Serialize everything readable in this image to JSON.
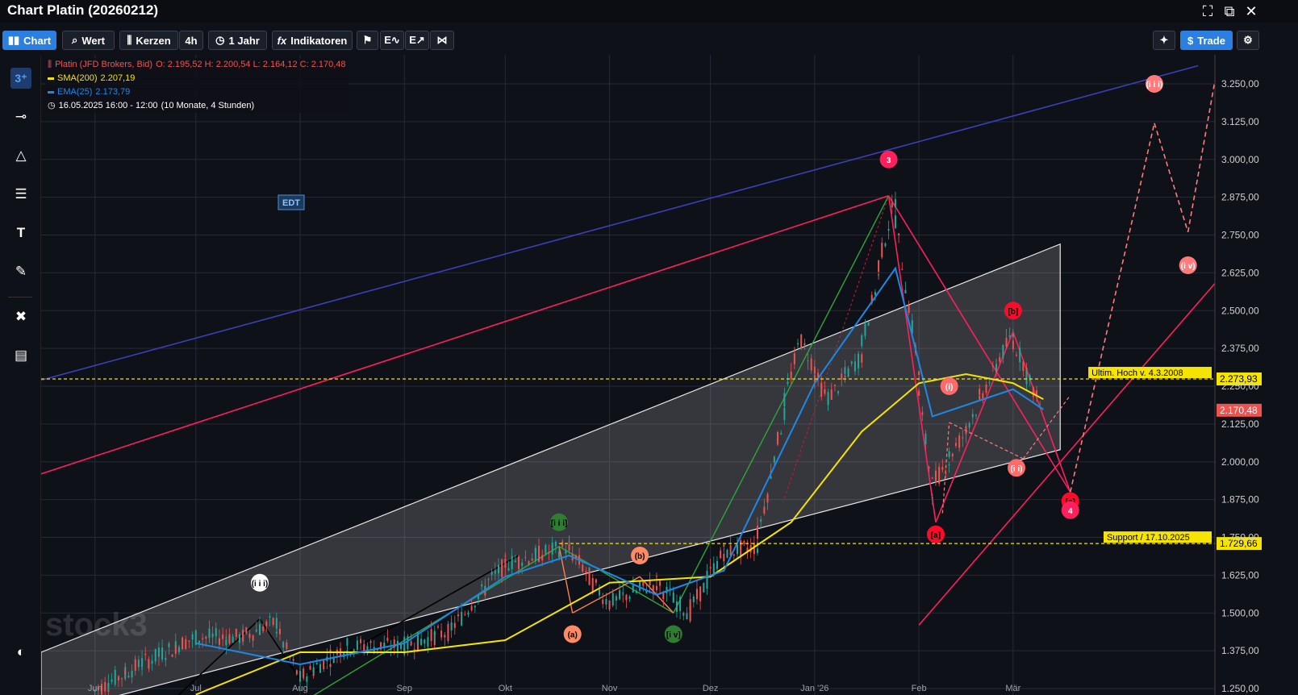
{
  "window": {
    "title": "Chart Platin (20260212)"
  },
  "toolbar": {
    "chart": "Chart",
    "wert": "Wert",
    "kerzen": "Kerzen",
    "interval": "4h",
    "range": "1 Jahr",
    "indikatoren": "Indikatoren",
    "trade": "Trade",
    "fx_icon": "fx"
  },
  "legend": {
    "instrument": "Platin (JFD Brokers, Bid)",
    "ohlc": "O: 2.195,52  H: 2.200,54  L: 2.164,12  C: 2.170,48",
    "sma_label": "SMA(200)",
    "sma_value": "2.207,19",
    "ema_label": "EMA(25)",
    "ema_value": "2.173,79",
    "period": "16.05.2025 16:00 - 12:00",
    "period_note": "(10 Monate, 4 Stunden)"
  },
  "watermark": "stock3",
  "edt_badge": "EDT",
  "colors": {
    "up": "#26a69a",
    "down": "#ef5350",
    "sma": "#f5e400",
    "ema": "#1e88e5",
    "accent": "#2a7fe0",
    "wave": "#ff1f5a",
    "channel": "#ffffff"
  },
  "chart_data": {
    "type": "line",
    "title": "Platin (JFD Brokers, Bid)",
    "x_ticks": [
      "Jun",
      "Jul",
      "Aug",
      "Sep",
      "Okt",
      "Nov",
      "Dez",
      "Jan '26",
      "Feb",
      "Mär"
    ],
    "y_ticks": [
      "3.250,00",
      "3.125,00",
      "3.000,00",
      "2.875,00",
      "2.750,00",
      "2.625,00",
      "2.500,00",
      "2.375,00",
      "2.250,00",
      "2.125,00",
      "2.000,00",
      "1.875,00",
      "1.750,00",
      "1.625,00",
      "1.500,00",
      "1.375,00",
      "1.250,00"
    ],
    "ylim": [
      1250,
      3330
    ],
    "series": [
      {
        "name": "Platin",
        "x": [
          "2025-06-01",
          "2025-06-15",
          "2025-07-01",
          "2025-07-15",
          "2025-07-25",
          "2025-08-01",
          "2025-08-15",
          "2025-09-01",
          "2025-09-15",
          "2025-10-01",
          "2025-10-20",
          "2025-11-01",
          "2025-11-15",
          "2025-11-25",
          "2025-12-05",
          "2025-12-15",
          "2025-12-28",
          "2026-01-05",
          "2026-01-15",
          "2026-01-25",
          "2026-02-01",
          "2026-02-05",
          "2026-02-15",
          "2026-03-01",
          "2026-03-10"
        ],
        "values": [
          1240,
          1330,
          1420,
          1420,
          1470,
          1280,
          1390,
          1390,
          1440,
          1660,
          1720,
          1530,
          1600,
          1500,
          1700,
          1720,
          2420,
          2200,
          2350,
          2870,
          2300,
          1910,
          2100,
          2420,
          2170
        ]
      },
      {
        "name": "SMA(200)",
        "x": [
          "2025-07-01",
          "2025-08-01",
          "2025-09-01",
          "2025-10-01",
          "2025-11-01",
          "2025-12-01",
          "2025-12-25",
          "2026-01-15",
          "2026-02-01",
          "2026-02-15",
          "2026-03-01",
          "2026-03-10"
        ],
        "values": [
          1230,
          1370,
          1370,
          1410,
          1600,
          1620,
          1800,
          2100,
          2260,
          2290,
          2260,
          2207
        ]
      },
      {
        "name": "EMA(25)",
        "x": [
          "2025-07-01",
          "2025-08-01",
          "2025-09-01",
          "2025-10-01",
          "2025-10-20",
          "2025-11-15",
          "2025-12-05",
          "2026-01-01",
          "2026-01-25",
          "2026-02-05",
          "2026-03-01",
          "2026-03-10"
        ],
        "values": [
          1400,
          1330,
          1400,
          1620,
          1690,
          1560,
          1640,
          2260,
          2640,
          2150,
          2240,
          2173
        ]
      }
    ],
    "horizontal_lines": [
      {
        "label": "Ultim. Hoch v. 4.3.2008",
        "value": 2273.93,
        "value_text": "2.273,93"
      },
      {
        "label": "Support / 17.10.2025",
        "value": 1729.66,
        "value_text": "1.729,66"
      }
    ],
    "last_price_text": "2.170,48",
    "wave_labels": [
      "(i i i)",
      "[i i i]",
      "(a)",
      "(b)",
      "[i v]",
      "3",
      "(i)",
      "(i i)",
      "[a]",
      "[b]",
      "[c]",
      "4",
      "(i i i)",
      "(i v)"
    ]
  }
}
